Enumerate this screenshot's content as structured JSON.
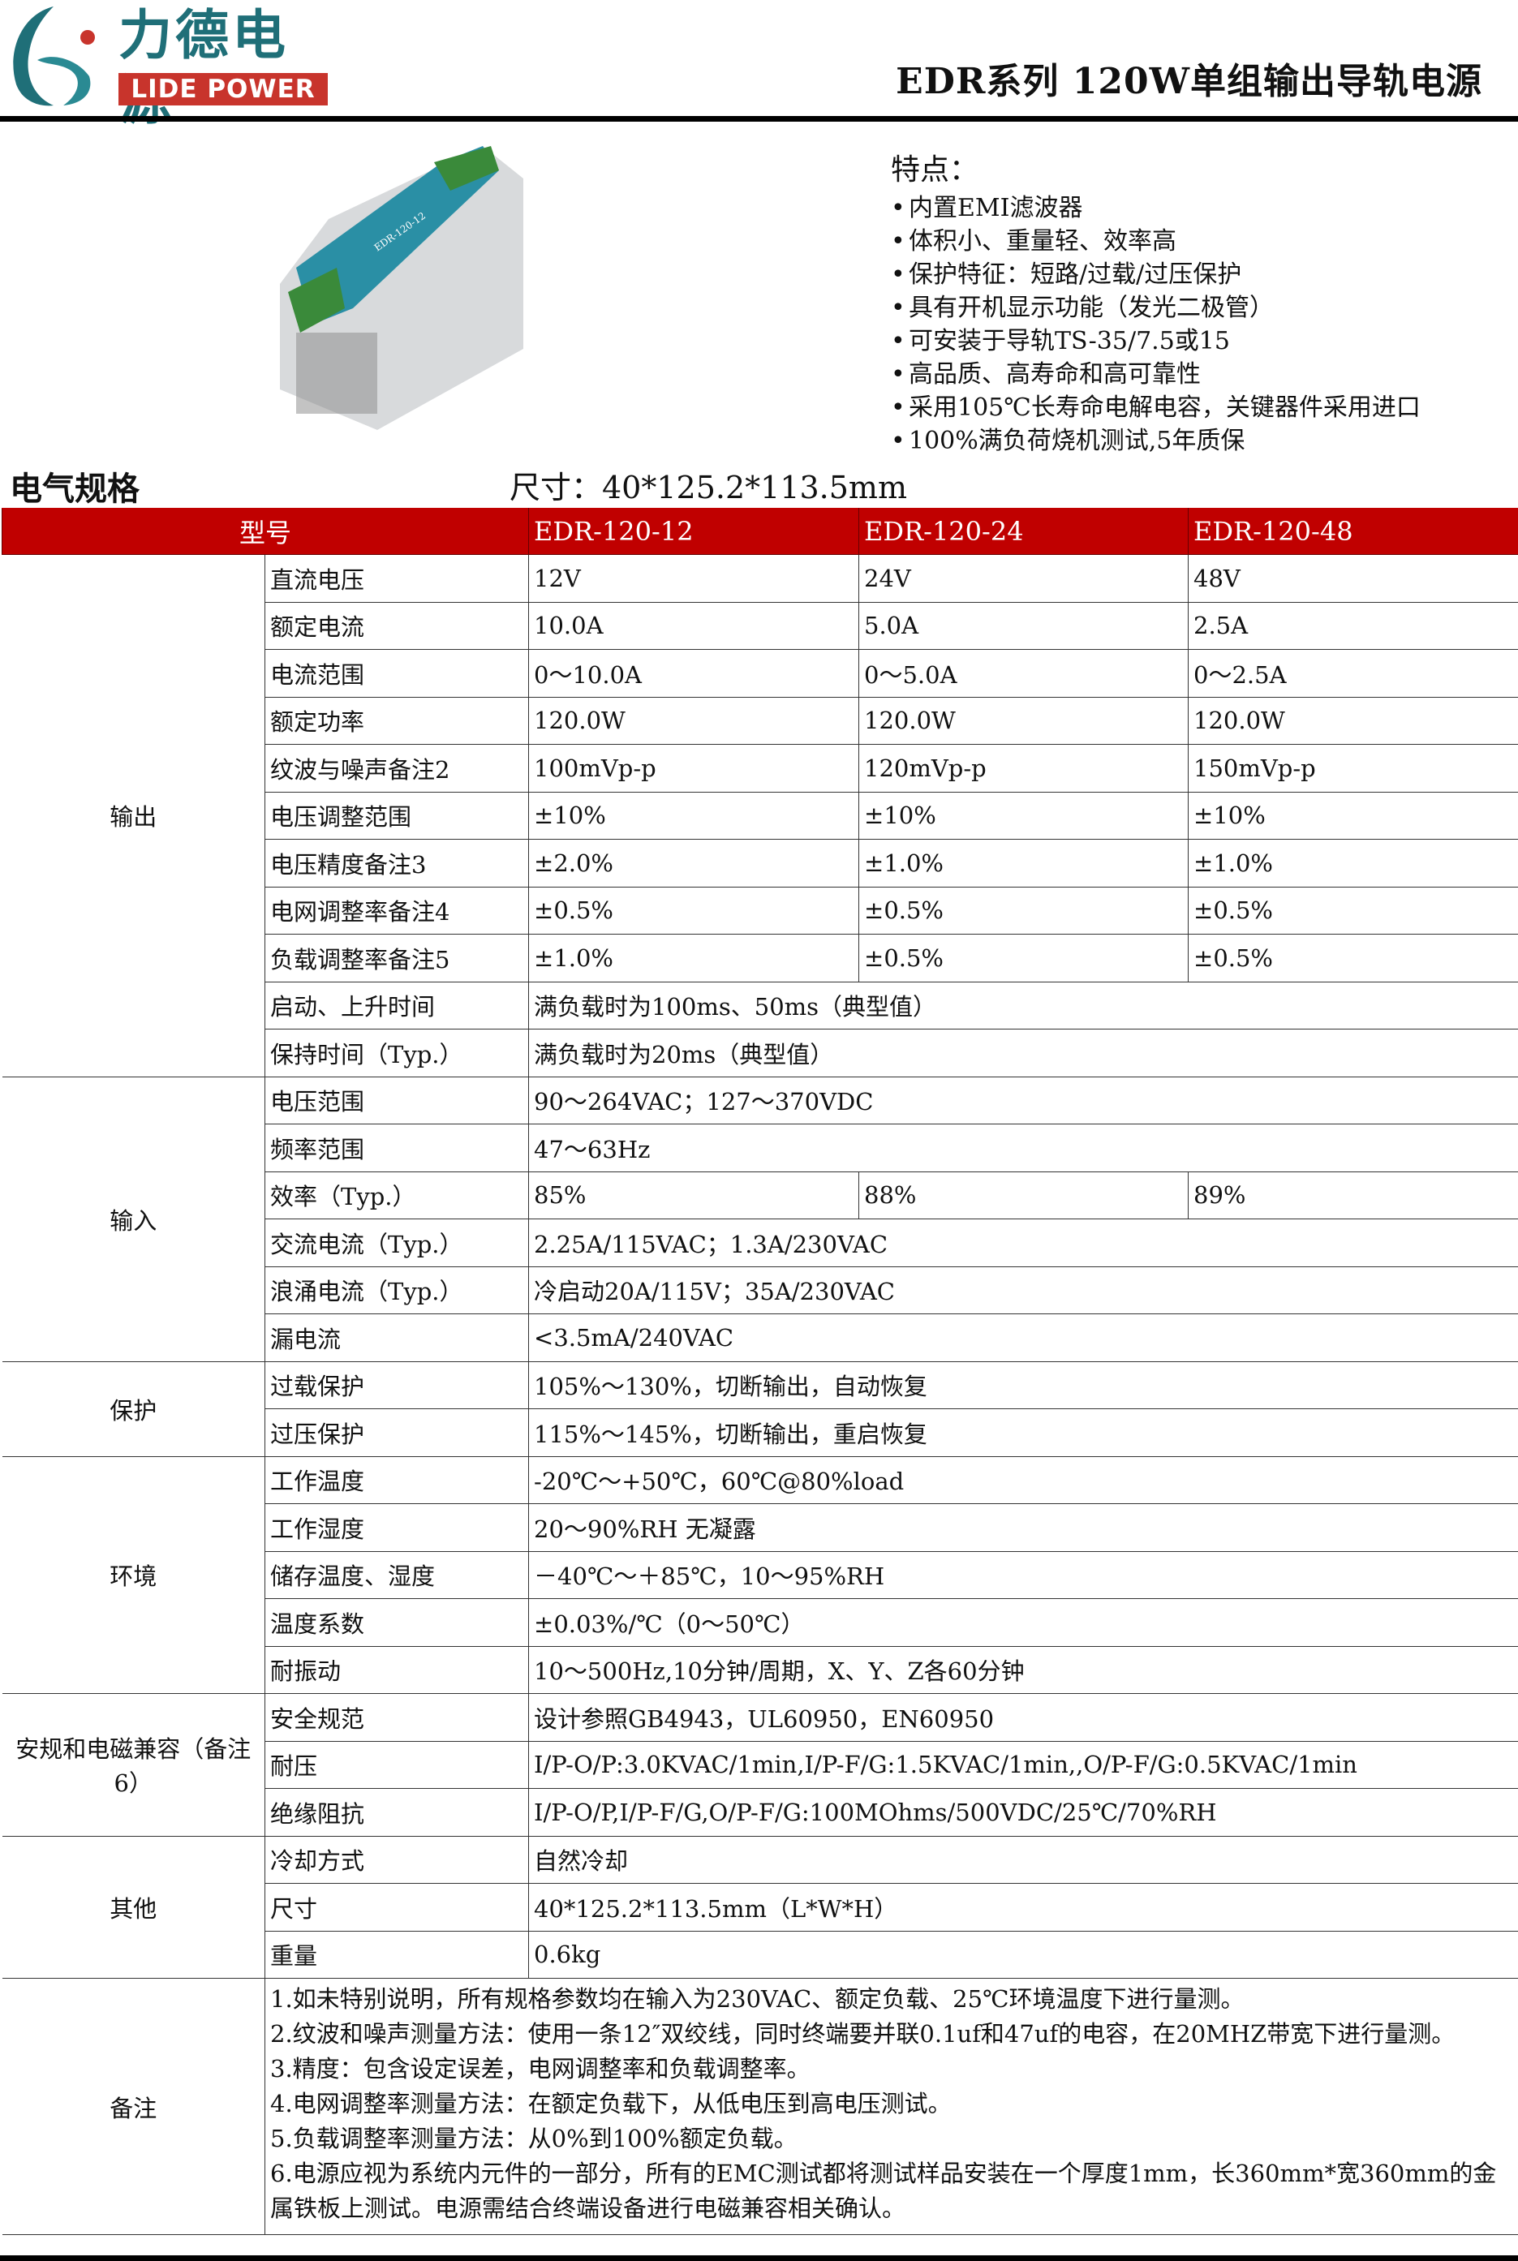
{
  "logo": {
    "cn": "力德电源",
    "en": "LIDE POWER"
  },
  "title": "EDR系列 120W单组输出导轨电源",
  "features": {
    "heading": "特点：",
    "items": [
      "内置EMI滤波器",
      "体积小、重量轻、效率高",
      "保护特征：短路/过载/过压保护",
      "具有开机显示功能（发光二极管）",
      "可安装于导轨TS-35/7.5或15",
      "高品质、高寿命和高可靠性",
      "采用105℃长寿命电解电容，关键器件采用进口",
      "100%满负荷烧机测试,5年质保"
    ]
  },
  "product": {
    "label": "EDR-120-12"
  },
  "section": "电气规格",
  "dimension": "尺寸：40*125.2*113.5mm",
  "header": {
    "model": "型号",
    "models": [
      "EDR-120-12",
      "EDR-120-24",
      "EDR-120-48"
    ]
  },
  "groups": [
    {
      "name": "输出",
      "rows": [
        {
          "label": "直流电压",
          "values": [
            "12V",
            "24V",
            "48V"
          ]
        },
        {
          "label": "额定电流",
          "values": [
            "10.0A",
            "5.0A",
            "2.5A"
          ]
        },
        {
          "label": "电流范围",
          "values": [
            "0～10.0A",
            "0～5.0A",
            "0～2.5A"
          ]
        },
        {
          "label": "额定功率",
          "values": [
            "120.0W",
            "120.0W",
            "120.0W"
          ]
        },
        {
          "label": "纹波与噪声备注2",
          "values": [
            "100mVp-p",
            "120mVp-p",
            "150mVp-p"
          ]
        },
        {
          "label": "电压调整范围",
          "values": [
            "±10%",
            "±10%",
            "±10%"
          ]
        },
        {
          "label": "电压精度备注3",
          "values": [
            "±2.0%",
            "±1.0%",
            "±1.0%"
          ]
        },
        {
          "label": "电网调整率备注4",
          "values": [
            "±0.5%",
            "±0.5%",
            "±0.5%"
          ]
        },
        {
          "label": "负载调整率备注5",
          "values": [
            "±1.0%",
            "±0.5%",
            "±0.5%"
          ]
        },
        {
          "label": "启动、上升时间",
          "value": "满负载时为100ms、50ms（典型值）"
        },
        {
          "label": "保持时间（Typ.）",
          "value": "满负载时为20ms（典型值）"
        }
      ]
    },
    {
      "name": "输入",
      "rows": [
        {
          "label": "电压范围",
          "value": "90～264VAC；127～370VDC"
        },
        {
          "label": "频率范围",
          "value": "47～63Hz"
        },
        {
          "label": "效率（Typ.）",
          "values": [
            "85%",
            "88%",
            "89%"
          ]
        },
        {
          "label": "交流电流（Typ.）",
          "value": "2.25A/115VAC；1.3A/230VAC"
        },
        {
          "label": "浪涌电流（Typ.）",
          "value": "冷启动20A/115V；35A/230VAC"
        },
        {
          "label": "漏电流",
          "value": "<3.5mA/240VAC"
        }
      ]
    },
    {
      "name": "保护",
      "rows": [
        {
          "label": "过载保护",
          "value": "105%～130%，切断输出，自动恢复"
        },
        {
          "label": "过压保护",
          "value": "115%～145%，切断输出，重启恢复"
        }
      ]
    },
    {
      "name": "环境",
      "rows": [
        {
          "label": "工作温度",
          "value": "-20℃～+50℃，60℃@80%load"
        },
        {
          "label": "工作湿度",
          "value": "20～90%RH 无凝露"
        },
        {
          "label": "储存温度、湿度",
          "value": "－40℃～＋85℃，10～95%RH"
        },
        {
          "label": "温度系数",
          "value": "±0.03%/℃（0～50℃）"
        },
        {
          "label": "耐振动",
          "value": "10～500Hz,10分钟/周期，X、Y、Z各60分钟"
        }
      ]
    },
    {
      "name": "安规和电磁兼容（备注6）",
      "rows": [
        {
          "label": "安全规范",
          "value": "设计参照GB4943，UL60950，EN60950"
        },
        {
          "label": "耐压",
          "value": "I/P-O/P:3.0KVAC/1min,I/P-F/G:1.5KVAC/1min,,O/P-F/G:0.5KVAC/1min"
        },
        {
          "label": "绝缘阻抗",
          "value": "I/P-O/P,I/P-F/G,O/P-F/G:100MOhms/500VDC/25℃/70%RH"
        }
      ]
    },
    {
      "name": "其他",
      "rows": [
        {
          "label": "冷却方式",
          "value": "自然冷却"
        },
        {
          "label": "尺寸",
          "value": "40*125.2*113.5mm（L*W*H）"
        },
        {
          "label": "重量",
          "value": "0.6kg"
        }
      ]
    }
  ],
  "notes": {
    "name": "备注",
    "items": [
      "1.如未特别说明，所有规格参数均在输入为230VAC、额定负载、25℃环境温度下进行量测。",
      "2.纹波和噪声测量方法：使用一条12″双绞线，同时终端要并联0.1uf和47uf的电容，在20MHZ带宽下进行量测。",
      "3.精度：包含设定误差，电网调整率和负载调整率。",
      "4.电网调整率测量方法：在额定负载下，从低电压到高电压测试。",
      "5.负载调整率测量方法：从0%到100%额定负载。",
      "6.电源应视为系统内元件的一部分，所有的EMC测试都将测试样品安装在一个厚度1mm，长360mm*宽360mm的金属铁板上测试。电源需结合终端设备进行电磁兼容相关确认。"
    ]
  },
  "colors": {
    "header_red": "#c00000",
    "logo_teal": "#1f6f78",
    "logo_red": "#c8342c"
  }
}
